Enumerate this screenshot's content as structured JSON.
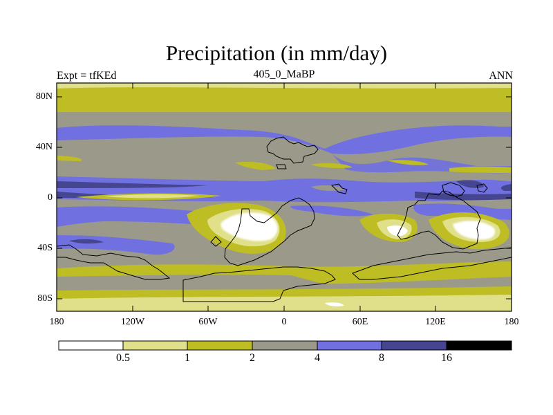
{
  "title": "Precipitation (in mm/day)",
  "subtitle_left": "Expt = tfKEd",
  "subtitle_center": "405_0_MaBP",
  "subtitle_right": "ANN",
  "y_ticks": [
    "80N",
    "40N",
    "0",
    "40S",
    "80S"
  ],
  "x_ticks": [
    "180",
    "120W",
    "60W",
    "0",
    "60E",
    "120E",
    "180"
  ],
  "colorbar": {
    "colors": [
      "#ffffff",
      "#e0df8a",
      "#bfbd24",
      "#9b9a8a",
      "#7070e0",
      "#454590",
      "#000000"
    ],
    "labels": [
      "0.5",
      "1",
      "2",
      "4",
      "8",
      "16"
    ]
  }
}
